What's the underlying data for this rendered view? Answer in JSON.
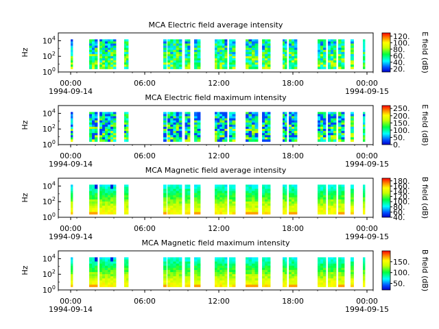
{
  "chart_data": [
    {
      "type": "heatmap",
      "title": "MCA  Electric field average intensity",
      "ylabel": "Hz",
      "yscale": "log",
      "ylim": [
        1,
        100000
      ],
      "ytick_labels": [
        "10^0",
        "10^2",
        "10^4"
      ],
      "xlim": [
        "1994-09-13 23:00",
        "1994-09-15 00:30"
      ],
      "xtick_labels": [
        "00:00",
        "06:00",
        "12:00",
        "18:00",
        "00:00"
      ],
      "xdate_labels": [
        "1994-09-14",
        "1994-09-15"
      ],
      "colorbar_label": "E field (dB)",
      "colorbar_range": [
        10,
        130
      ],
      "colorbar_ticks": [
        "20.",
        "40.",
        "60.",
        "80.",
        "100.",
        "120."
      ],
      "colormap": "rainbow",
      "grid": false,
      "data_segments_utc": [
        [
          "00:00",
          "00:10"
        ],
        [
          "01:30",
          "02:10"
        ],
        [
          "02:20",
          "03:40"
        ],
        [
          "04:20",
          "04:40"
        ],
        [
          "07:30",
          "07:45"
        ],
        [
          "07:50",
          "09:00"
        ],
        [
          "09:15",
          "09:40"
        ],
        [
          "10:00",
          "10:30"
        ],
        [
          "11:40",
          "12:40"
        ],
        [
          "12:50",
          "13:20"
        ],
        [
          "14:10",
          "15:10"
        ],
        [
          "15:30",
          "16:10"
        ],
        [
          "17:10",
          "17:30"
        ],
        [
          "17:40",
          "18:20"
        ],
        [
          "20:00",
          "20:40"
        ],
        [
          "20:50",
          "21:30"
        ],
        [
          "21:40",
          "22:10"
        ],
        [
          "22:40",
          "22:55"
        ],
        [
          "23:40",
          "23:50"
        ]
      ]
    },
    {
      "type": "heatmap",
      "title": "MCA  Electric field maximum intensity",
      "ylabel": "Hz",
      "yscale": "log",
      "ylim": [
        1,
        100000
      ],
      "ytick_labels": [
        "10^0",
        "10^2",
        "10^4"
      ],
      "xlim": [
        "1994-09-13 23:00",
        "1994-09-15 00:30"
      ],
      "xtick_labels": [
        "00:00",
        "06:00",
        "12:00",
        "18:00",
        "00:00"
      ],
      "xdate_labels": [
        "1994-09-14",
        "1994-09-15"
      ],
      "colorbar_label": "E field (dB)",
      "colorbar_range": [
        0,
        270
      ],
      "colorbar_ticks": [
        "0.",
        "50.",
        "100.",
        "150.",
        "200.",
        "250."
      ],
      "colormap": "rainbow",
      "grid": false,
      "data_segments_utc": [
        [
          "00:00",
          "00:10"
        ],
        [
          "01:30",
          "02:10"
        ],
        [
          "02:20",
          "03:40"
        ],
        [
          "04:20",
          "04:40"
        ],
        [
          "07:30",
          "07:45"
        ],
        [
          "07:50",
          "09:00"
        ],
        [
          "09:15",
          "09:40"
        ],
        [
          "10:00",
          "10:30"
        ],
        [
          "11:40",
          "12:40"
        ],
        [
          "12:50",
          "13:20"
        ],
        [
          "14:10",
          "15:10"
        ],
        [
          "15:30",
          "16:10"
        ],
        [
          "17:10",
          "17:30"
        ],
        [
          "17:40",
          "18:20"
        ],
        [
          "20:00",
          "20:40"
        ],
        [
          "20:50",
          "21:30"
        ],
        [
          "21:40",
          "22:10"
        ],
        [
          "22:40",
          "22:55"
        ],
        [
          "23:40",
          "23:50"
        ]
      ]
    },
    {
      "type": "heatmap",
      "title": "MCA  Magnetic field average intensity",
      "ylabel": "Hz",
      "yscale": "log",
      "ylim": [
        1,
        100000
      ],
      "ytick_labels": [
        "10^0",
        "10^2",
        "10^4"
      ],
      "xlim": [
        "1994-09-13 23:00",
        "1994-09-15 00:30"
      ],
      "xtick_labels": [
        "00:00",
        "06:00",
        "12:00",
        "18:00",
        "00:00"
      ],
      "xdate_labels": [
        "1994-09-14",
        "1994-09-15"
      ],
      "colorbar_label": "B field (dB)",
      "colorbar_range": [
        40,
        190
      ],
      "colorbar_ticks": [
        "40.",
        "60.",
        "80.",
        "100.",
        "120.",
        "140.",
        "160.",
        "180."
      ],
      "colormap": "rainbow",
      "grid": false,
      "data_segments_utc": [
        [
          "00:00",
          "00:10"
        ],
        [
          "01:30",
          "02:10"
        ],
        [
          "02:20",
          "03:40"
        ],
        [
          "04:20",
          "04:40"
        ],
        [
          "07:30",
          "07:45"
        ],
        [
          "07:50",
          "09:00"
        ],
        [
          "09:15",
          "09:40"
        ],
        [
          "10:00",
          "10:30"
        ],
        [
          "11:40",
          "12:40"
        ],
        [
          "12:50",
          "13:20"
        ],
        [
          "14:10",
          "15:10"
        ],
        [
          "15:30",
          "16:10"
        ],
        [
          "17:10",
          "17:30"
        ],
        [
          "17:40",
          "18:20"
        ],
        [
          "20:00",
          "20:40"
        ],
        [
          "20:50",
          "21:30"
        ],
        [
          "21:40",
          "22:10"
        ],
        [
          "22:40",
          "22:55"
        ],
        [
          "23:40",
          "23:50"
        ]
      ]
    },
    {
      "type": "heatmap",
      "title": "MCA  Magnetic field maximum intensity",
      "ylabel": "Hz",
      "yscale": "log",
      "ylim": [
        1,
        100000
      ],
      "ytick_labels": [
        "10^0",
        "10^2",
        "10^4"
      ],
      "xlim": [
        "1994-09-13 23:00",
        "1994-09-15 00:30"
      ],
      "xtick_labels": [
        "00:00",
        "06:00",
        "12:00",
        "18:00",
        "00:00"
      ],
      "xdate_labels": [
        "1994-09-14",
        "1994-09-15"
      ],
      "colorbar_label": "B field (dB)",
      "colorbar_range": [
        20,
        200
      ],
      "colorbar_ticks": [
        "50.",
        "100.",
        "150."
      ],
      "colormap": "rainbow",
      "grid": false,
      "data_segments_utc": [
        [
          "00:00",
          "00:10"
        ],
        [
          "01:30",
          "02:10"
        ],
        [
          "02:20",
          "03:40"
        ],
        [
          "04:20",
          "04:40"
        ],
        [
          "07:30",
          "07:45"
        ],
        [
          "07:50",
          "09:00"
        ],
        [
          "09:15",
          "09:40"
        ],
        [
          "10:00",
          "10:30"
        ],
        [
          "11:40",
          "12:40"
        ],
        [
          "12:50",
          "13:20"
        ],
        [
          "14:10",
          "15:10"
        ],
        [
          "15:30",
          "16:10"
        ],
        [
          "17:10",
          "17:30"
        ],
        [
          "17:40",
          "18:20"
        ],
        [
          "20:00",
          "20:40"
        ],
        [
          "20:50",
          "21:30"
        ],
        [
          "21:40",
          "22:10"
        ],
        [
          "22:40",
          "22:55"
        ],
        [
          "23:40",
          "23:50"
        ]
      ]
    }
  ]
}
